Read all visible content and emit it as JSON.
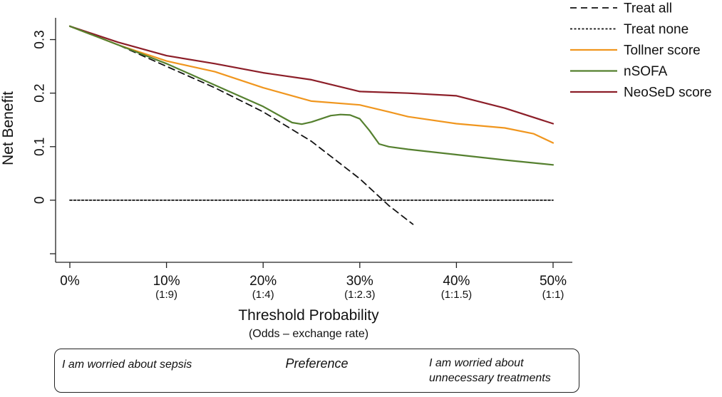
{
  "chart_data": {
    "type": "line",
    "title": "",
    "xlabel": "Threshold Probability",
    "xlabel_sub": "(Odds – exchange rate)",
    "ylabel": "Net Benefit",
    "xlim": [
      0,
      0.5
    ],
    "ylim": [
      -0.1,
      0.33
    ],
    "grid": false,
    "legend_position": "top-right",
    "x_ticks": [
      {
        "value": 0.0,
        "label": "0%",
        "odds": ""
      },
      {
        "value": 0.1,
        "label": "10%",
        "odds": "(1:9)"
      },
      {
        "value": 0.2,
        "label": "20%",
        "odds": "(1:4)"
      },
      {
        "value": 0.3,
        "label": "30%",
        "odds": "(1:2.3)"
      },
      {
        "value": 0.4,
        "label": "40%",
        "odds": "(1:1.5)"
      },
      {
        "value": 0.5,
        "label": "50%",
        "odds": "(1:1)"
      }
    ],
    "y_ticks": [
      {
        "value": 0.3,
        "label": "0.3"
      },
      {
        "value": 0.2,
        "label": "0.2"
      },
      {
        "value": 0.1,
        "label": "0.1"
      },
      {
        "value": 0.0,
        "label": "0"
      },
      {
        "value": -0.1,
        "label": ""
      }
    ],
    "series": [
      {
        "name": "Treat all",
        "color": "#111111",
        "dash": "dashed",
        "x": [
          0.0,
          0.05,
          0.1,
          0.15,
          0.2,
          0.25,
          0.3,
          0.33,
          0.355
        ],
        "y": [
          0.325,
          0.29,
          0.25,
          0.21,
          0.165,
          0.11,
          0.04,
          -0.01,
          -0.045
        ]
      },
      {
        "name": "Treat none",
        "color": "#111111",
        "dash": "dotted",
        "x": [
          0.0,
          0.5
        ],
        "y": [
          0.0,
          0.0
        ]
      },
      {
        "name": "Tollner score",
        "color": "#F0961E",
        "dash": "solid",
        "x": [
          0.0,
          0.05,
          0.1,
          0.15,
          0.2,
          0.25,
          0.3,
          0.33,
          0.35,
          0.4,
          0.45,
          0.48,
          0.5
        ],
        "y": [
          0.325,
          0.29,
          0.26,
          0.24,
          0.21,
          0.185,
          0.178,
          0.165,
          0.156,
          0.143,
          0.135,
          0.124,
          0.107
        ]
      },
      {
        "name": "nSOFA",
        "color": "#55802F",
        "dash": "solid",
        "x": [
          0.0,
          0.05,
          0.1,
          0.15,
          0.2,
          0.22,
          0.23,
          0.24,
          0.25,
          0.27,
          0.28,
          0.29,
          0.3,
          0.31,
          0.32,
          0.33,
          0.35,
          0.4,
          0.45,
          0.5
        ],
        "y": [
          0.325,
          0.29,
          0.255,
          0.215,
          0.175,
          0.155,
          0.145,
          0.142,
          0.146,
          0.158,
          0.16,
          0.159,
          0.152,
          0.13,
          0.105,
          0.1,
          0.095,
          0.085,
          0.075,
          0.066
        ]
      },
      {
        "name": "NeoSeD score",
        "color": "#8C1E28",
        "dash": "solid",
        "x": [
          0.0,
          0.05,
          0.1,
          0.15,
          0.2,
          0.25,
          0.3,
          0.35,
          0.4,
          0.45,
          0.5
        ],
        "y": [
          0.325,
          0.295,
          0.27,
          0.255,
          0.238,
          0.225,
          0.203,
          0.2,
          0.195,
          0.172,
          0.143
        ]
      }
    ]
  },
  "preference": {
    "left": "I am worried about sepsis",
    "center": "Preference",
    "right": "I am worried about unnecessary treatments"
  }
}
